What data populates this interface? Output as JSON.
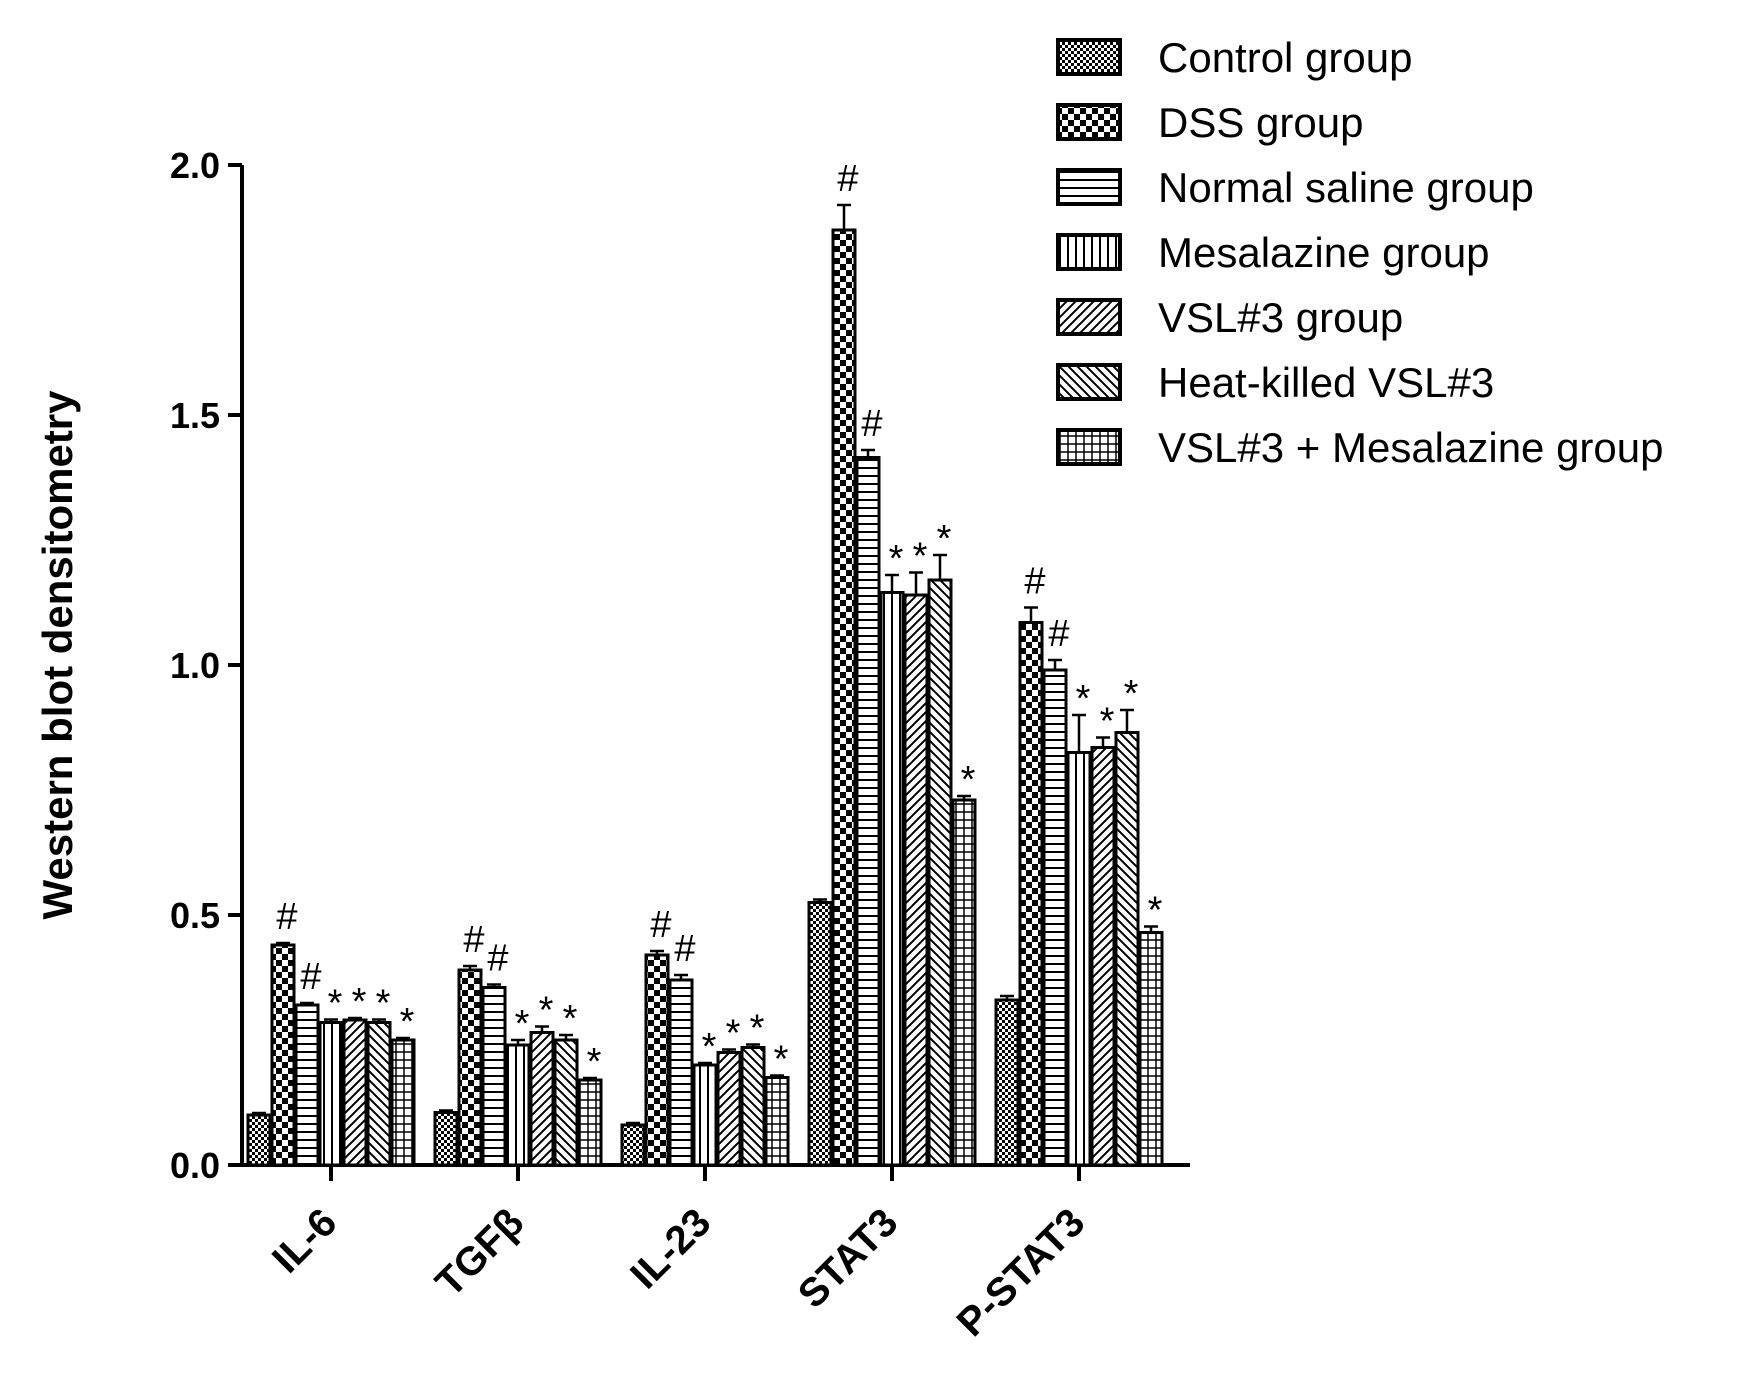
{
  "chart_data": {
    "type": "bar",
    "title": "",
    "xlabel": "",
    "ylabel": "Western blot densitometry",
    "ylim": [
      0,
      2.0
    ],
    "yticks": [
      "0.0",
      "0.5",
      "1.0",
      "1.5",
      "2.0"
    ],
    "ytick_values": [
      0,
      0.5,
      1.0,
      1.5,
      2.0
    ],
    "categories": [
      "IL-6",
      "TGFβ",
      "IL-23",
      "STAT3",
      "P-STAT3"
    ],
    "legend_position": "top-right",
    "series": [
      {
        "name": "Control group",
        "pattern": "fine-checker",
        "values": [
          0.1,
          0.105,
          0.08,
          0.525,
          0.33
        ],
        "errors": [
          0.004,
          0.004,
          0.004,
          0.006,
          0.008
        ],
        "annotations": [
          "",
          "",
          "",
          "",
          ""
        ]
      },
      {
        "name": "DSS group",
        "pattern": "bold-checker",
        "values": [
          0.44,
          0.39,
          0.42,
          1.87,
          1.085
        ],
        "errors": [
          0.004,
          0.008,
          0.008,
          0.05,
          0.03
        ],
        "annotations": [
          "#",
          "#",
          "#",
          "#",
          "#"
        ]
      },
      {
        "name": "Normal saline group",
        "pattern": "horizontal-lines",
        "values": [
          0.32,
          0.355,
          0.37,
          1.415,
          0.99
        ],
        "errors": [
          0.004,
          0.006,
          0.01,
          0.015,
          0.02
        ],
        "annotations": [
          "#",
          "#",
          "#",
          "#",
          "#"
        ]
      },
      {
        "name": "Mesalazine group",
        "pattern": "vertical-lines",
        "values": [
          0.285,
          0.24,
          0.2,
          1.145,
          0.825
        ],
        "errors": [
          0.006,
          0.01,
          0.004,
          0.035,
          0.075
        ],
        "annotations": [
          "*",
          "*",
          "*",
          "*",
          "*"
        ]
      },
      {
        "name": "VSL#3 group",
        "pattern": "forward-diagonal",
        "values": [
          0.29,
          0.265,
          0.225,
          1.14,
          0.835
        ],
        "errors": [
          0.004,
          0.012,
          0.006,
          0.045,
          0.02
        ],
        "annotations": [
          "*",
          "*",
          "*",
          "*",
          "*"
        ]
      },
      {
        "name": "Heat-killed VSL#3",
        "pattern": "back-diagonal",
        "values": [
          0.285,
          0.25,
          0.235,
          1.17,
          0.865
        ],
        "errors": [
          0.006,
          0.01,
          0.006,
          0.05,
          0.045
        ],
        "annotations": [
          "*",
          "*",
          "*",
          "*",
          "*"
        ]
      },
      {
        "name": "VSL#3 + Mesalazine group",
        "pattern": "grid",
        "values": [
          0.25,
          0.17,
          0.175,
          0.73,
          0.465
        ],
        "errors": [
          0.004,
          0.004,
          0.004,
          0.008,
          0.012
        ],
        "annotations": [
          "*",
          "*",
          "*",
          "*",
          "*"
        ]
      }
    ]
  }
}
